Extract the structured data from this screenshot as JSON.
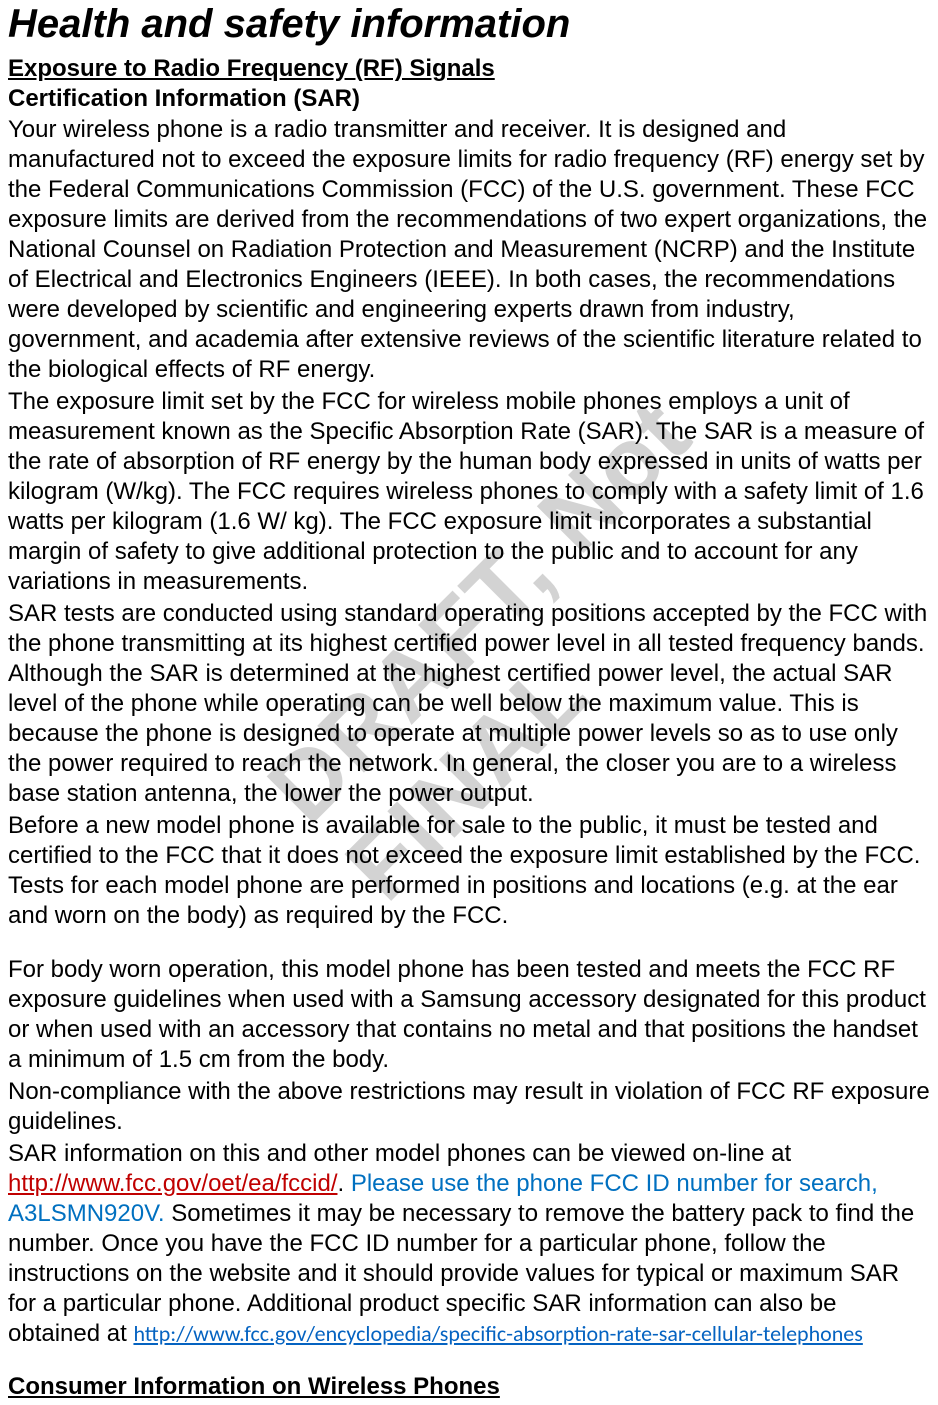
{
  "watermark": "DRAFT, Not FINAL",
  "title": "Health and safety information",
  "heading1": "Exposure to Radio Frequency (RF) Signals",
  "subheading1": "Certification Information (SAR)",
  "p1": "Your wireless phone is a radio transmitter and receiver. It is designed and manufactured not to exceed the exposure limits for radio frequency (RF) energy set by the Federal Communications Commission (FCC) of the U.S. government. These FCC exposure limits are derived from the recommendations of two expert organizations, the National Counsel on Radiation Protection and Measurement (NCRP) and the Institute of Electrical and Electronics Engineers (IEEE). In both cases, the recommendations were developed by scientific and engineering experts drawn from industry, government, and academia after extensive reviews of the scientific literature related to the biological effects of RF energy.",
  "p2": "The exposure limit set by the FCC for wireless mobile phones employs a unit of measurement known as the Specific Absorption Rate (SAR). The SAR is a measure of the rate of absorption of RF energy by the human body expressed in units of watts per kilogram (W/kg). The FCC requires wireless phones to comply with a safety limit of 1.6 watts per kilogram (1.6 W/ kg). The FCC exposure limit incorporates a substantial margin of safety to give additional protection to the public and to account for any variations in measurements.",
  "p3": "SAR tests are conducted using standard operating positions accepted by the FCC with the phone transmitting at its highest certified power level in all tested frequency bands. Although the SAR is determined at the highest certified power level, the actual SAR level of the phone while operating can be well below the maximum value. This is because the phone is designed to operate at multiple power levels so as to use only the power required to reach the network. In general, the closer you are to a wireless base station antenna, the lower the power output.",
  "p4": "Before a new model phone is available for sale to the public, it must be tested and certified to the FCC that it does not exceed the exposure limit established by the FCC. Tests for each model phone are performed in positions and locations (e.g. at the ear and worn on the body) as required by the FCC.",
  "p5": "For body worn operation, this model phone has been tested and meets the FCC RF exposure guidelines when used with a Samsung accessory designated for this product or when used with an accessory that contains no metal and that positions the handset a minimum of 1.5 cm from the body.",
  "p6": "Non-compliance with the above restrictions may result in violation of FCC RF exposure guidelines.",
  "p7_part1": "SAR information on this and other model phones can be viewed on-line at ",
  "p7_link1": "http://www.fcc.gov/oet/ea/fccid/",
  "p7_part2": ". ",
  "p7_blue": "Please use the phone FCC ID number for search, A3LSMN920V.",
  "p7_part3": " Sometimes it may be necessary to remove the battery pack to find the number. Once you have the FCC ID number for a particular phone, follow the instructions on the website and it should provide values for typical or maximum SAR for a particular phone. Additional product specific SAR information can also be obtained at ",
  "p7_link2": "http://www.fcc.gov/encyclopedia/specific-absorption-rate-sar-cellular-telephones",
  "heading2": "Consumer Information on Wireless Phones",
  "colors": {
    "text": "#000000",
    "link_red": "#c00000",
    "link_blue": "#0563c1",
    "blue_text": "#0070c0",
    "background": "#ffffff",
    "watermark": "rgba(128,128,128,0.35)"
  },
  "typography": {
    "title_size": 40,
    "heading_size": 24,
    "body_size": 24,
    "link2_size": 22
  }
}
